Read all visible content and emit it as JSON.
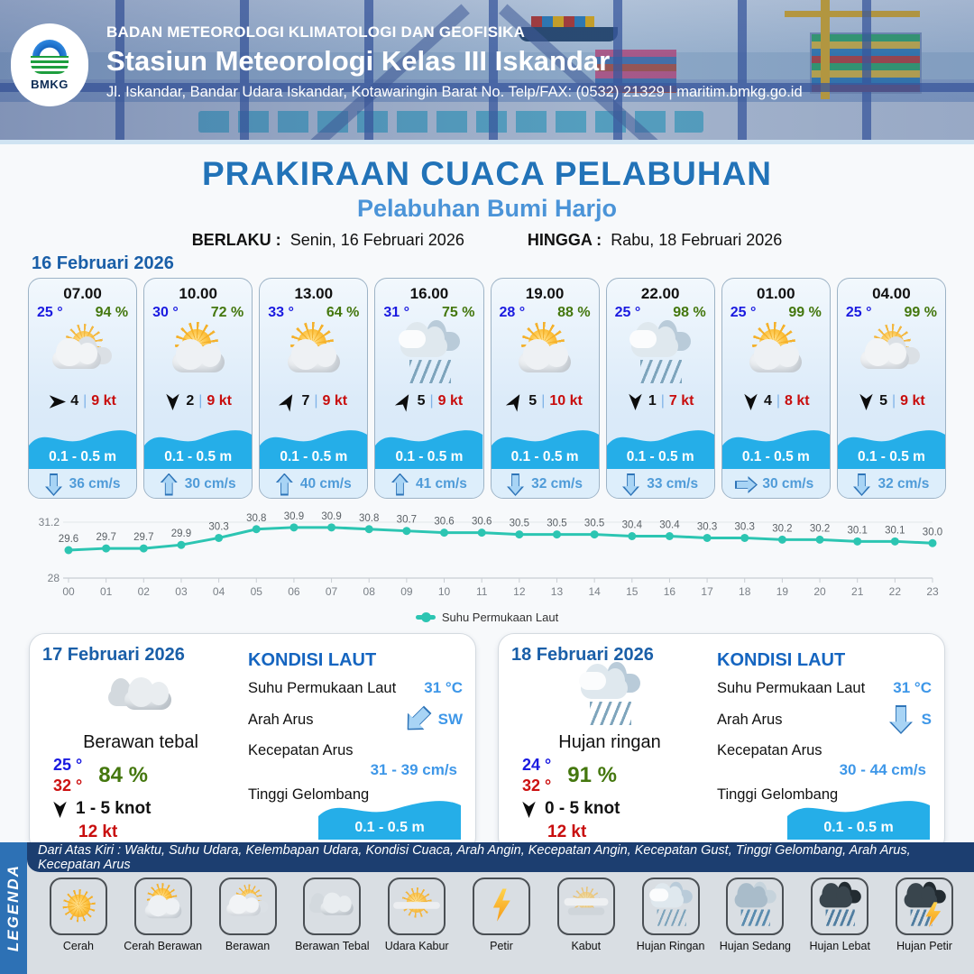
{
  "header": {
    "org": "BADAN METEOROLOGI KLIMATOLOGI DAN GEOFISIKA",
    "station": "Stasiun Meteorologi Kelas III Iskandar",
    "address": "Jl. Iskandar, Bandar Udara Iskandar, Kotawaringin Barat No. Telp/FAX: (0532) 21329 | maritim.bmkg.go.id",
    "logo_text": "BMKG"
  },
  "title": {
    "main": "PRAKIRAAN CUACA PELABUHAN",
    "subtitle": "Pelabuhan Bumi Harjo",
    "berlaku_label": "BERLAKU :",
    "berlaku_value": "Senin, 16 Februari 2026",
    "hingga_label": "HINGGA :",
    "hingga_value": "Rabu, 18 Februari 2026"
  },
  "labels": {
    "wind_sep": "|"
  },
  "day1": {
    "date": "16 Februari 2026",
    "cards": [
      {
        "time": "07.00",
        "temp": "25 °",
        "humidity": "94 %",
        "icon": "berawan",
        "wind_speed": "4",
        "gust": "9 kt",
        "wind_deg": 90,
        "wave": "0.1 - 0.5 m",
        "current": "36 cm/s",
        "current_deg": 180
      },
      {
        "time": "10.00",
        "temp": "30 °",
        "humidity": "72 %",
        "icon": "cerah-berawan",
        "wind_speed": "2",
        "gust": "9 kt",
        "wind_deg": 180,
        "wave": "0.1 - 0.5 m",
        "current": "30 cm/s",
        "current_deg": 0
      },
      {
        "time": "13.00",
        "temp": "33 °",
        "humidity": "64 %",
        "icon": "cerah-berawan",
        "wind_speed": "7",
        "gust": "9 kt",
        "wind_deg": 30,
        "wave": "0.1 - 0.5 m",
        "current": "40 cm/s",
        "current_deg": 0
      },
      {
        "time": "16.00",
        "temp": "31 °",
        "humidity": "75 %",
        "icon": "hujan-ringan",
        "wind_speed": "5",
        "gust": "9 kt",
        "wind_deg": 30,
        "wave": "0.1 - 0.5 m",
        "current": "41 cm/s",
        "current_deg": 0
      },
      {
        "time": "19.00",
        "temp": "28 °",
        "humidity": "88 %",
        "icon": "cerah-berawan",
        "wind_speed": "5",
        "gust": "10 kt",
        "wind_deg": 30,
        "wave": "0.1 - 0.5 m",
        "current": "32 cm/s",
        "current_deg": 180
      },
      {
        "time": "22.00",
        "temp": "25 °",
        "humidity": "98 %",
        "icon": "hujan-ringan",
        "wind_speed": "1",
        "gust": "7 kt",
        "wind_deg": 180,
        "wave": "0.1 - 0.5 m",
        "current": "33 cm/s",
        "current_deg": 180
      },
      {
        "time": "01.00",
        "temp": "25 °",
        "humidity": "99 %",
        "icon": "cerah-berawan",
        "wind_speed": "4",
        "gust": "8 kt",
        "wind_deg": 180,
        "wave": "0.1 - 0.5 m",
        "current": "30 cm/s",
        "current_deg": 90
      },
      {
        "time": "04.00",
        "temp": "25 °",
        "humidity": "99 %",
        "icon": "berawan",
        "wind_speed": "5",
        "gust": "9 kt",
        "wind_deg": 180,
        "wave": "0.1 - 0.5 m",
        "current": "32 cm/s",
        "current_deg": 180
      }
    ]
  },
  "chart_data": {
    "type": "line",
    "x": [
      "00",
      "01",
      "02",
      "03",
      "04",
      "05",
      "06",
      "07",
      "08",
      "09",
      "10",
      "11",
      "12",
      "13",
      "14",
      "15",
      "16",
      "17",
      "18",
      "19",
      "20",
      "21",
      "22",
      "23"
    ],
    "values": [
      29.6,
      29.7,
      29.7,
      29.9,
      30.3,
      30.8,
      30.9,
      30.9,
      30.8,
      30.7,
      30.6,
      30.6,
      30.5,
      30.5,
      30.5,
      30.4,
      30.4,
      30.3,
      30.3,
      30.2,
      30.2,
      30.1,
      30.1,
      30.0
    ],
    "series_name": "Suhu Permukaan Laut",
    "ylim": [
      28,
      31.2
    ],
    "ytick_labels": [
      "31.2",
      "28"
    ],
    "grid": "top-and-baseline",
    "legend_position": "bottom",
    "line_color": "#2cc5b2"
  },
  "daily": [
    {
      "date": "17 Februari 2026",
      "icon": "berawan-tebal",
      "condition": "Berawan tebal",
      "temp_min": "25 °",
      "temp_max": "32 °",
      "humidity": "84 %",
      "wind_range": "1  - 5 knot",
      "wind_deg": 180,
      "gust": "12 kt",
      "sea": {
        "heading": "KONDISI LAUT",
        "sst_label": "Suhu Permukaan Laut",
        "sst_value": "31 °C",
        "arah_label": "Arah Arus",
        "arah_value": "SW",
        "arah_deg": 225,
        "kec_label": "Kecepatan Arus",
        "kec_value": "31  - 39 cm/s",
        "wave_label": "Tinggi Gelombang",
        "wave_value": "0.1 - 0.5 m"
      }
    },
    {
      "date": "18 Februari 2026",
      "icon": "hujan-ringan",
      "condition": "Hujan ringan",
      "temp_min": "24 °",
      "temp_max": "32 °",
      "humidity": "91 %",
      "wind_range": "0  - 5 knot",
      "wind_deg": 180,
      "gust": "12 kt",
      "sea": {
        "heading": "KONDISI LAUT",
        "sst_label": "Suhu Permukaan Laut",
        "sst_value": "31 °C",
        "arah_label": "Arah Arus",
        "arah_value": "S",
        "arah_deg": 180,
        "kec_label": "Kecepatan Arus",
        "kec_value": "30 - 44 cm/s",
        "wave_label": "Tinggi Gelombang",
        "wave_value": "0.1 - 0.5 m"
      }
    }
  ],
  "legend": {
    "title": "LEGENDA",
    "note": "Dari Atas Kiri : Waktu, Suhu Udara, Kelembapan Udara, Kondisi Cuaca, Arah Angin, Kecepatan Angin, Kecepatan Gust, Tinggi Gelombang, Arah Arus, Kecepatan Arus",
    "items": [
      {
        "label": "Cerah",
        "icon": "cerah"
      },
      {
        "label": "Cerah Berawan",
        "icon": "cerah-berawan"
      },
      {
        "label": "Berawan",
        "icon": "berawan"
      },
      {
        "label": "Berawan Tebal",
        "icon": "berawan-tebal"
      },
      {
        "label": "Udara Kabur",
        "icon": "udara-kabur"
      },
      {
        "label": "Petir",
        "icon": "petir"
      },
      {
        "label": "Kabut",
        "icon": "kabut"
      },
      {
        "label": "Hujan Ringan",
        "icon": "hujan-ringan"
      },
      {
        "label": "Hujan Sedang",
        "icon": "hujan-sedang"
      },
      {
        "label": "Hujan Lebat",
        "icon": "hujan-lebat"
      },
      {
        "label": "Hujan Petir",
        "icon": "hujan-petir"
      }
    ]
  },
  "colors": {
    "title_blue": "#2273b8",
    "subtitle_blue": "#4b94d8",
    "date_blue": "#1a5fa8",
    "temp_blue": "#1a1ae0",
    "temp_max_red": "#cc1111",
    "humidity_green": "#44770e",
    "gust_red": "#c80d0d",
    "current_blue": "#4f9bd8",
    "wave_fill": "#25aee8",
    "sst_line_teal": "#2cc5b2",
    "kondisi_heading": "#1565c0",
    "sea_value_blue": "#3e97e8",
    "legend_bar_blue": "#2d71b5",
    "legend_strip_navy": "#1c3e70"
  }
}
